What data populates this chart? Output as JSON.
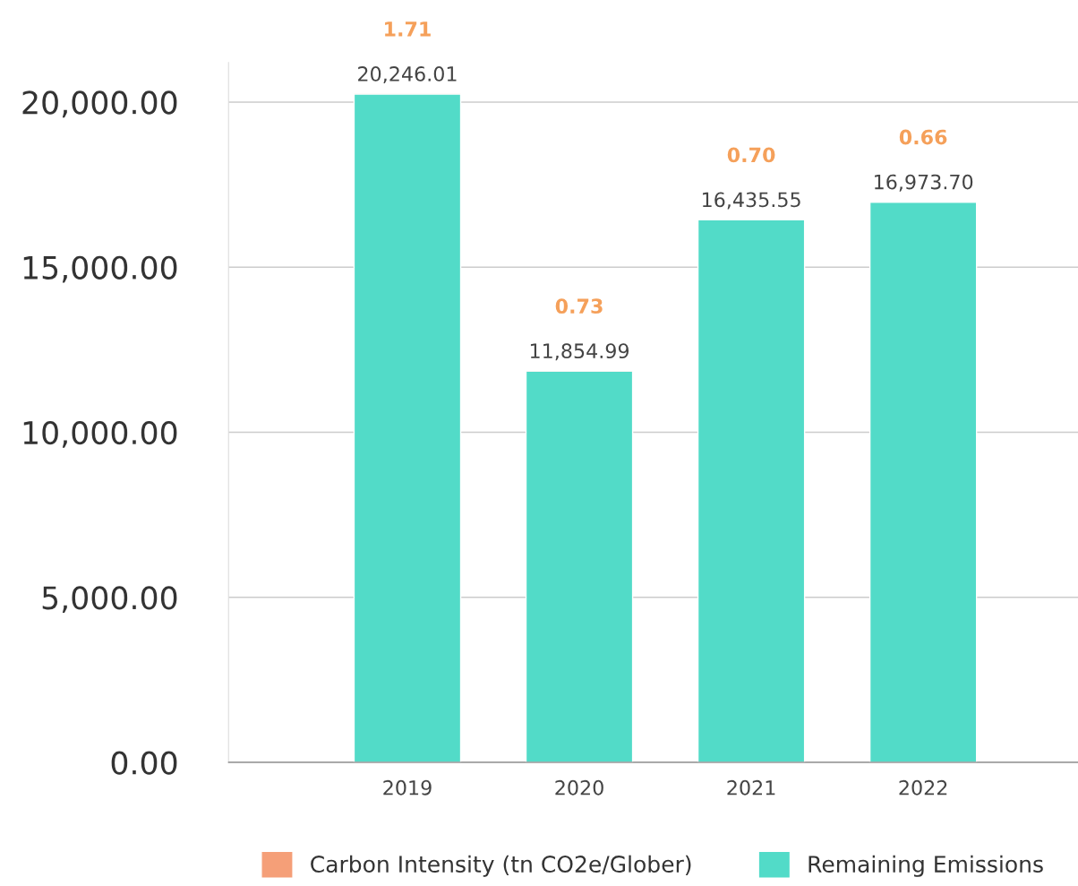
{
  "chart_data": {
    "type": "bar",
    "stacked": true,
    "categories": [
      "2019",
      "2020",
      "2021",
      "2022"
    ],
    "series": [
      {
        "name": "Remaining Emissions",
        "color": "#52dbc8",
        "values": [
          20246.01,
          11854.99,
          16435.55,
          16973.7
        ],
        "value_labels": [
          "20,246.01",
          "11,854.99",
          "16,435.55",
          "16,973.70"
        ]
      },
      {
        "name": "Carbon Intensity (tn CO2e/Glober)",
        "color": "#f59f78",
        "values": [
          1.71,
          0.73,
          0.7,
          0.66
        ],
        "value_labels": [
          "1.71",
          "0.73",
          "0.70",
          "0.66"
        ]
      }
    ],
    "yticks": [
      {
        "value": 0,
        "label": "0.00"
      },
      {
        "value": 5000,
        "label": "5,000.00"
      },
      {
        "value": 10000,
        "label": "10,000.00"
      },
      {
        "value": 15000,
        "label": "15,000.00"
      },
      {
        "value": 20000,
        "label": "20,000.00"
      }
    ],
    "ylim": [
      0,
      21200
    ],
    "grid": "y",
    "legend": "bottom"
  }
}
